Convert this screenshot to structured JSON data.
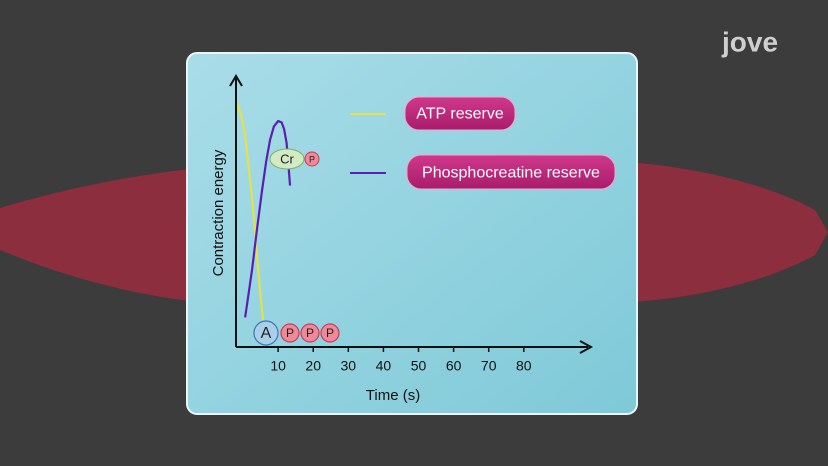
{
  "logo": "jove",
  "chart_data": {
    "type": "line",
    "y_label": "Contraction energy",
    "x_label": "Time (s)",
    "xlim": [
      -2,
      99
    ],
    "ylim": [
      0,
      100
    ],
    "xticks": [
      10,
      20,
      30,
      40,
      50,
      60,
      70,
      80
    ],
    "series": [
      {
        "name": "ATP reserve",
        "color": "#e6e04a",
        "x": [
          -1.7,
          -0.5,
          0.6,
          1.6,
          2.6,
          3.5,
          4.3,
          5.0,
          5.7
        ],
        "values": [
          90.7,
          86,
          79,
          67,
          55,
          42,
          29,
          19,
          10
        ]
      },
      {
        "name": "Phosphocreatine reserve",
        "color": "#5a1fb0",
        "x": [
          0.6,
          1.5,
          2.6,
          4.0,
          5.4,
          6.6,
          7.7,
          8.8,
          10,
          11,
          11.7,
          12.4,
          12.8,
          13.4
        ],
        "values": [
          11,
          19,
          29,
          44,
          58,
          69,
          77,
          82,
          84,
          83.5,
          81,
          76,
          70,
          60
        ]
      }
    ],
    "atp_labels": [
      "A",
      "P",
      "P",
      "P"
    ],
    "creatine_labels": [
      "Cr",
      "P"
    ]
  }
}
